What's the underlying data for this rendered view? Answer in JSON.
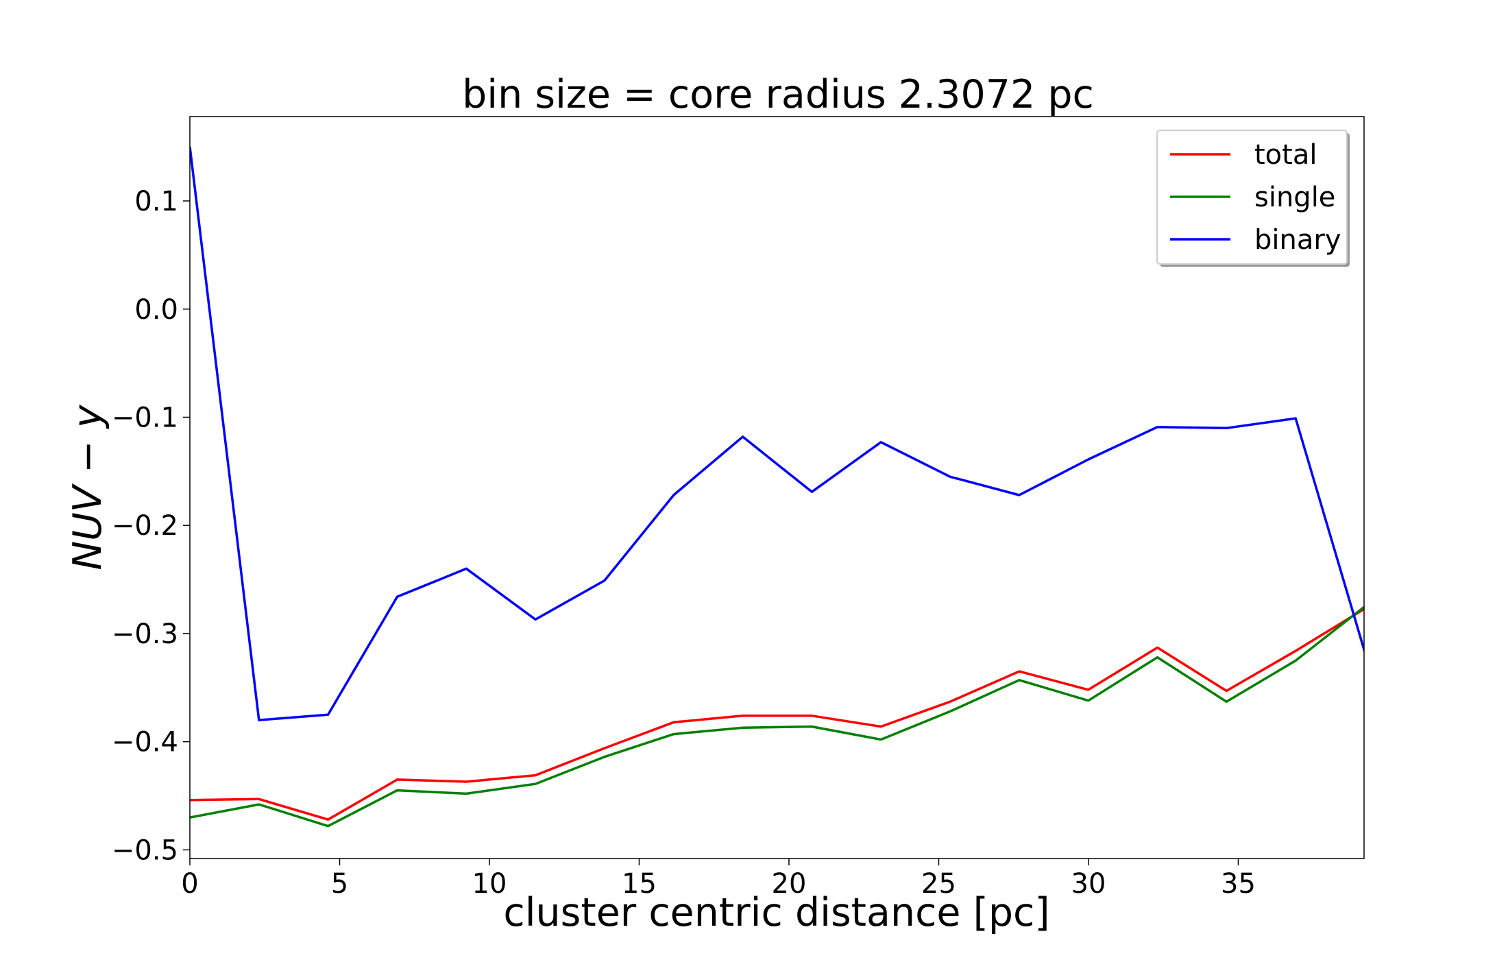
{
  "chart_data": {
    "type": "line",
    "title": "bin size = core radius 2.3072 pc",
    "xlabel": "cluster centric distance [pc]",
    "ylabel": "NUV − y",
    "xlim": [
      0,
      39.2
    ],
    "ylim": [
      -0.508,
      0.178
    ],
    "xticks": [
      0,
      5,
      10,
      15,
      20,
      25,
      30,
      35
    ],
    "yticks": [
      0.1,
      0.0,
      -0.1,
      -0.2,
      -0.3,
      -0.4,
      -0.5
    ],
    "ytick_labels": [
      "0.1",
      "0.0",
      "−0.1",
      "−0.2",
      "−0.3",
      "−0.4",
      "−0.5"
    ],
    "grid": false,
    "legend_position": "top-right",
    "x": [
      0,
      2.3072,
      4.6144,
      6.9216,
      9.2288,
      11.536,
      13.8432,
      16.1504,
      18.4576,
      20.7648,
      23.072,
      25.3792,
      27.6864,
      29.9936,
      32.3008,
      34.608,
      36.9152,
      39.2224
    ],
    "series": [
      {
        "name": "total",
        "color": "#ff0000",
        "values": [
          -0.454,
          -0.453,
          -0.472,
          -0.435,
          -0.437,
          -0.431,
          -0.406,
          -0.382,
          -0.376,
          -0.376,
          -0.386,
          -0.363,
          -0.335,
          -0.352,
          -0.313,
          -0.353,
          -0.316,
          -0.277
        ]
      },
      {
        "name": "single",
        "color": "#008000",
        "values": [
          -0.47,
          -0.458,
          -0.478,
          -0.445,
          -0.448,
          -0.439,
          -0.414,
          -0.393,
          -0.387,
          -0.386,
          -0.398,
          -0.372,
          -0.343,
          -0.362,
          -0.322,
          -0.363,
          -0.325,
          -0.275
        ]
      },
      {
        "name": "binary",
        "color": "#0000ff",
        "values": [
          0.15,
          -0.38,
          -0.375,
          -0.266,
          -0.24,
          -0.287,
          -0.251,
          -0.172,
          -0.118,
          -0.169,
          -0.123,
          -0.155,
          -0.172,
          -0.139,
          -0.109,
          -0.11,
          -0.101,
          -0.317
        ]
      }
    ]
  }
}
